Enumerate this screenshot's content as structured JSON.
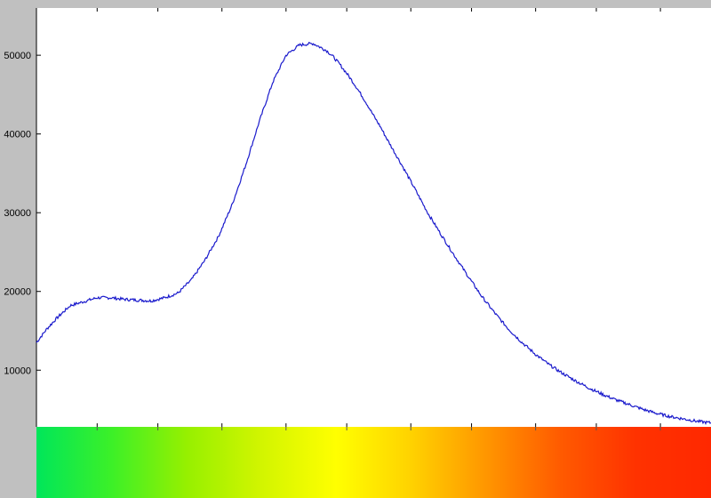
{
  "colors": {
    "background": "#c0c0c0",
    "plot_background": "#ffffff",
    "line": "#1a1acc",
    "spectrum_stops": [
      "#00e65a",
      "#3cf028",
      "#96f000",
      "#d2f500",
      "#ffff00",
      "#ffd200",
      "#ff9600",
      "#ff5a00",
      "#ff3200",
      "#ff2800"
    ]
  },
  "chart_data": {
    "type": "line",
    "title": "",
    "xlabel": "",
    "ylabel": "",
    "x_tick_labels": false,
    "grid": false,
    "legend": "none",
    "xlim": [
      0,
      100
    ],
    "ylim": [
      2800,
      56000
    ],
    "y_ticks": [
      10000,
      20000,
      30000,
      40000,
      50000
    ],
    "y_tick_labels": [
      "10000",
      "20000",
      "30000",
      "40000",
      "50000"
    ],
    "x_ticks": [
      9,
      18,
      27.5,
      37,
      46,
      55.5,
      64.5,
      74,
      83,
      92.5
    ],
    "series": [
      {
        "name": "",
        "x": [
          0,
          1.5,
          3,
          5,
          7,
          9,
          11,
          13,
          15,
          17,
          19,
          21,
          23,
          25,
          27,
          29,
          31,
          33,
          35,
          37,
          39,
          41,
          43,
          44,
          45,
          46,
          47,
          48,
          49,
          50,
          51,
          52,
          54,
          56,
          58,
          60,
          62,
          64,
          66,
          68,
          70,
          72,
          74,
          76,
          78,
          80,
          82,
          84,
          86,
          88,
          90,
          92,
          94,
          96,
          98,
          100
        ],
        "y": [
          13500,
          15200,
          16600,
          18200,
          18700,
          19200,
          19200,
          19000,
          18900,
          18800,
          19200,
          19800,
          21500,
          24000,
          27000,
          31000,
          36000,
          41500,
          46500,
          50000,
          51300,
          51500,
          50600,
          49800,
          48800,
          47700,
          46500,
          45200,
          43800,
          42300,
          40900,
          39300,
          36300,
          33200,
          30000,
          27200,
          24500,
          21900,
          19400,
          17200,
          15200,
          13500,
          12000,
          10700,
          9600,
          8600,
          7700,
          6900,
          6200,
          5600,
          5000,
          4500,
          4100,
          3800,
          3500,
          3300
        ]
      }
    ]
  }
}
